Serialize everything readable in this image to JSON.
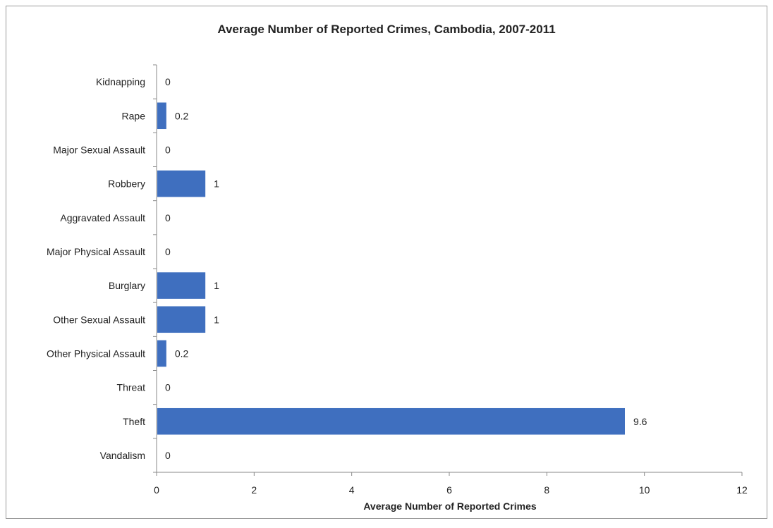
{
  "chart_data": {
    "type": "bar",
    "orientation": "horizontal",
    "title": "Average Number of Reported Crimes, Cambodia, 2007-2011",
    "xlabel": "Average Number of Reported Crimes",
    "ylabel": "",
    "xlim": [
      0,
      12
    ],
    "x_ticks": [
      "0",
      "2",
      "4",
      "6",
      "8",
      "10",
      "12"
    ],
    "categories": [
      "Kidnapping",
      "Rape",
      "Major Sexual Assault",
      "Robbery",
      "Aggravated Assault",
      "Major Physical Assault",
      "Burglary",
      "Other Sexual Assault",
      "Other Physical Assault",
      "Threat",
      "Theft",
      "Vandalism"
    ],
    "values": [
      0,
      0.2,
      0,
      1,
      0,
      0,
      1,
      1,
      0.2,
      0,
      9.6,
      0
    ],
    "data_labels": [
      "0",
      "0.2",
      "0",
      "1",
      "0",
      "0",
      "1",
      "1",
      "0.2",
      "0",
      "9.6",
      "0"
    ],
    "bar_color": "#3f6fbf",
    "grid": false,
    "legend": "none"
  }
}
